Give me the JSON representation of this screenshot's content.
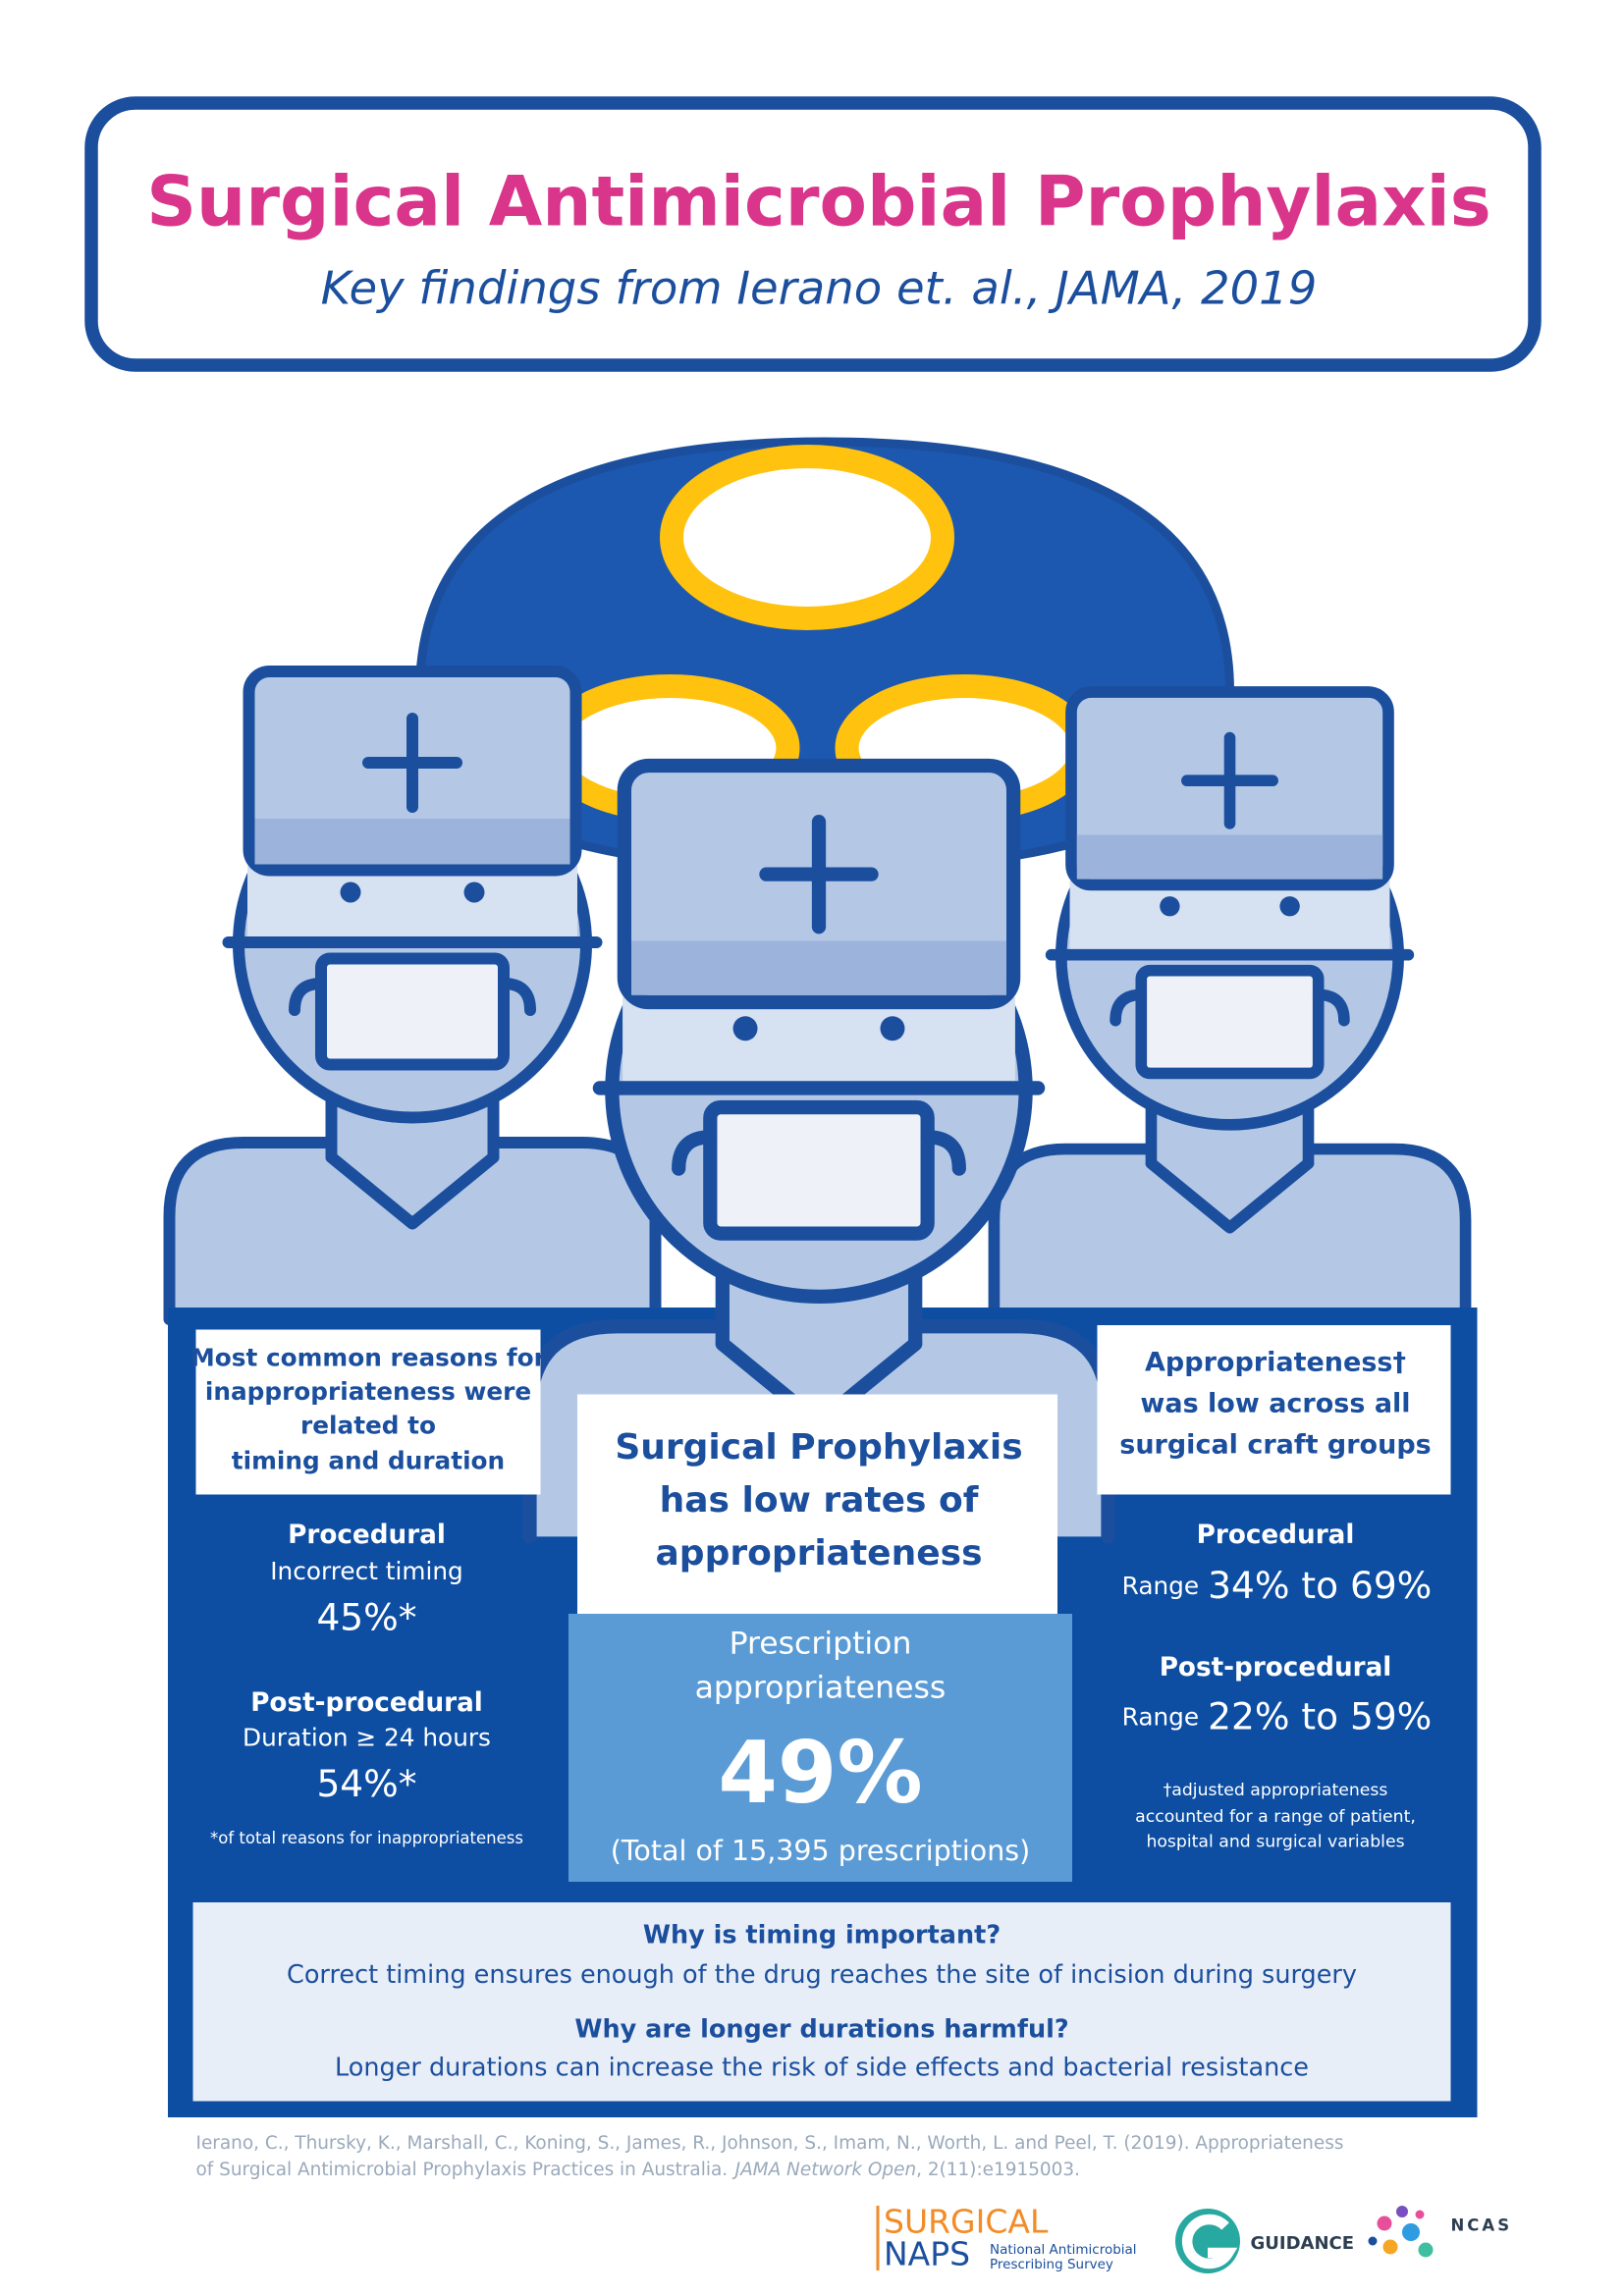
{
  "header": {
    "title": "Surgical Antimicrobial Prophylaxis",
    "subtitle": "Key findings from Ierano et. al., JAMA, 2019"
  },
  "left": {
    "heading": [
      "Most common reasons for",
      "inappropriateness were",
      "related to",
      "timing and duration"
    ],
    "procedural": {
      "label": "Procedural",
      "detail": "Incorrect timing",
      "value": "45%*"
    },
    "post_procedural": {
      "label": "Post-procedural",
      "detail": "Duration ≥ 24 hours",
      "value": "54%*"
    },
    "footnote": "*of total reasons for inappropriateness"
  },
  "center": {
    "heading": [
      "Surgical Prophylaxis",
      "has low rates of",
      "appropriateness"
    ],
    "metric_label": [
      "Prescription",
      "appropriateness"
    ],
    "value": "49%",
    "note": "(Total of 15,395 prescriptions)"
  },
  "right": {
    "heading": [
      "Appropriateness†",
      "was low across all",
      "surgical craft groups"
    ],
    "procedural": {
      "label": "Procedural",
      "range_word": "Range",
      "range": "34% to 69%"
    },
    "post_procedural": {
      "label": "Post-procedural",
      "range_word": "Range",
      "range": "22% to 59%"
    },
    "footnote": [
      "†adjusted appropriateness",
      "accounted for a range of patient,",
      "hospital and surgical variables"
    ]
  },
  "info": {
    "items": [
      {
        "question": "Why is timing important?",
        "answer": "Correct timing ensures enough of the drug reaches the site of incision during surgery"
      },
      {
        "question": "Why are longer durations harmful?",
        "answer": "Longer durations can increase the risk of side effects and bacterial resistance"
      }
    ]
  },
  "citation": {
    "line1": "Ierano, C., Thursky, K., Marshall, C., Koning, S., James, R., Johnson, S., Imam, N., Worth, L. and Peel, T. (2019). Appropriateness",
    "line2": "of Surgical Antimicrobial Prophylaxis Practices in Australia.",
    "journal": "JAMA Network Open",
    "line2_end": ", 2(11):e1915003."
  },
  "logos": {
    "naps_top": "SURGICAL",
    "naps_bottom": "NAPS",
    "naps_sub": [
      "National Antimicrobial",
      "Prescribing Survey"
    ],
    "guidance": "GUIDANCE",
    "ncas": "NCAS"
  }
}
